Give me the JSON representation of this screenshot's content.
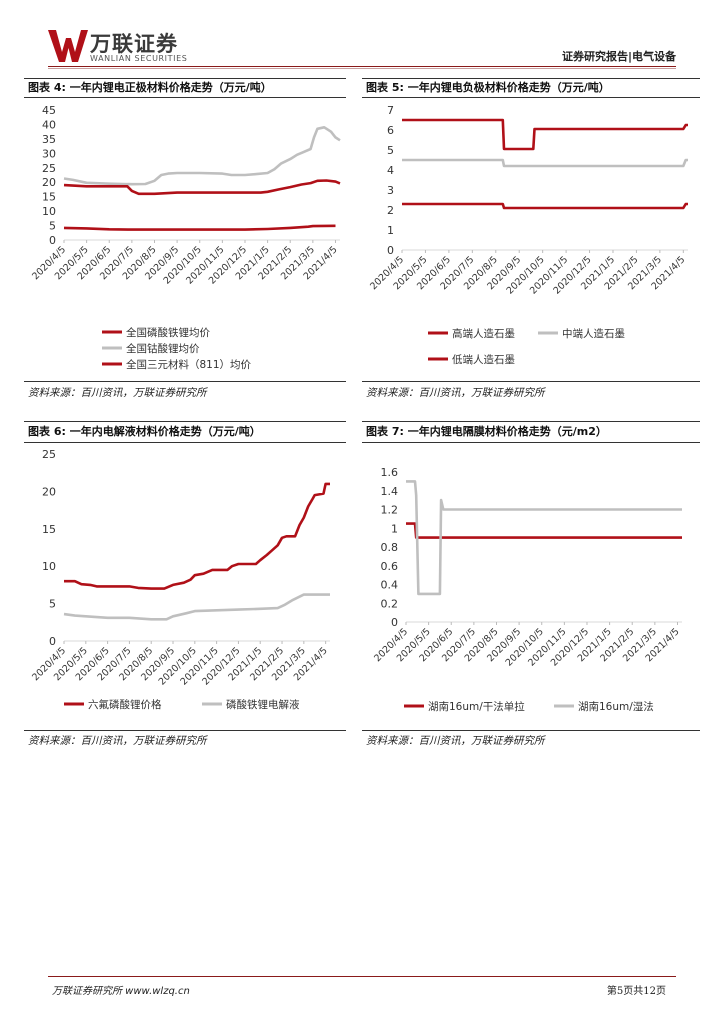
{
  "header": {
    "logo_cn": "万联证券",
    "logo_en": "WANLIAN SECURITIES",
    "report_type": "证券研究报告|电气设备"
  },
  "figures": [
    {
      "title": "图表 4:  一年内锂电正极材料价格走势（万元/吨）",
      "source": "资料来源：百川资讯，万联证券研究所"
    },
    {
      "title": "图表 5:  一年内锂电负极材料价格走势（万元/吨）",
      "source": "资料来源：百川资讯，万联证券研究所"
    },
    {
      "title": "图表 6:  一年内电解液材料价格走势（万元/吨）",
      "source": "资料来源：百川资讯，万联证券研究所"
    },
    {
      "title": "图表 7:  一年内锂电隔膜材料价格走势（元/m2）",
      "source": "资料来源：百川资讯，万联证券研究所"
    }
  ],
  "footer": {
    "left": "万联证券研究所 www.wlzq.cn",
    "right": "第5页共12页"
  },
  "colors": {
    "dark_red": "#b01018",
    "gray": "#bfbfbf",
    "rule": "#8a1a1a"
  },
  "chart_data": [
    {
      "type": "line",
      "title": "",
      "ylim": [
        0,
        45
      ],
      "yticks": [
        0,
        5,
        10,
        15,
        20,
        25,
        30,
        35,
        40,
        45
      ],
      "x_ticks": [
        "2020/4/5",
        "2020/5/5",
        "2020/6/5",
        "2020/7/5",
        "2020/8/5",
        "2020/9/5",
        "2020/10/5",
        "2020/11/5",
        "2020/12/5",
        "2021/1/5",
        "2021/2/5",
        "2021/3/5",
        "2021/4/5"
      ],
      "legend_position": "bottom",
      "series": [
        {
          "name": "全国磷酸铁锂均价",
          "color": "#b01018",
          "points": [
            [
              0,
              4.2
            ],
            [
              1,
              4.0
            ],
            [
              2,
              3.7
            ],
            [
              3,
              3.6
            ],
            [
              4,
              3.6
            ],
            [
              5,
              3.6
            ],
            [
              6,
              3.6
            ],
            [
              7,
              3.6
            ],
            [
              8,
              3.6
            ],
            [
              9,
              3.8
            ],
            [
              10,
              4.2
            ],
            [
              10.8,
              4.6
            ],
            [
              11,
              4.8
            ],
            [
              12,
              4.9
            ]
          ]
        },
        {
          "name": "全国钴酸锂均价",
          "color": "#bfbfbf",
          "points": [
            [
              0,
              21.3
            ],
            [
              0.4,
              20.8
            ],
            [
              1,
              19.8
            ],
            [
              2,
              19.5
            ],
            [
              3,
              19.3
            ],
            [
              3.6,
              19.4
            ],
            [
              4,
              20.5
            ],
            [
              4.3,
              22.5
            ],
            [
              4.6,
              23.0
            ],
            [
              5,
              23.2
            ],
            [
              6,
              23.2
            ],
            [
              7,
              23.0
            ],
            [
              7.4,
              22.5
            ],
            [
              8,
              22.5
            ],
            [
              8.5,
              22.8
            ],
            [
              9,
              23.2
            ],
            [
              9.3,
              24.5
            ],
            [
              9.6,
              26.5
            ],
            [
              10,
              28.0
            ],
            [
              10.3,
              29.5
            ],
            [
              10.6,
              30.5
            ],
            [
              10.9,
              31.5
            ],
            [
              11.05,
              35.5
            ],
            [
              11.2,
              38.5
            ],
            [
              11.5,
              39.0
            ],
            [
              11.8,
              37.5
            ],
            [
              12,
              35.5
            ],
            [
              12.2,
              34.5
            ]
          ]
        },
        {
          "name": "全国三元材料（811）均价",
          "color": "#b01018",
          "points": [
            [
              0,
              19.0
            ],
            [
              1,
              18.6
            ],
            [
              2,
              18.6
            ],
            [
              2.8,
              18.6
            ],
            [
              3,
              17.0
            ],
            [
              3.3,
              16.0
            ],
            [
              4,
              16.0
            ],
            [
              5,
              16.4
            ],
            [
              6,
              16.4
            ],
            [
              7,
              16.4
            ],
            [
              8,
              16.4
            ],
            [
              8.7,
              16.4
            ],
            [
              9,
              16.7
            ],
            [
              9.5,
              17.5
            ],
            [
              10,
              18.3
            ],
            [
              10.5,
              19.2
            ],
            [
              10.9,
              19.7
            ],
            [
              11.2,
              20.5
            ],
            [
              11.6,
              20.6
            ],
            [
              12,
              20.2
            ],
            [
              12.2,
              19.6
            ]
          ]
        }
      ]
    },
    {
      "type": "line",
      "title": "",
      "ylim": [
        0,
        7
      ],
      "yticks": [
        0,
        1,
        2,
        3,
        4,
        5,
        6,
        7
      ],
      "x_ticks": [
        "2020/4/5",
        "2020/5/5",
        "2020/6/5",
        "2020/7/5",
        "2020/8/5",
        "2020/9/5",
        "2020/10/5",
        "2020/11/5",
        "2020/12/5",
        "2021/1/5",
        "2021/2/5",
        "2021/3/5",
        "2021/4/5"
      ],
      "legend_position": "bottom",
      "series": [
        {
          "name": "高端人造石墨",
          "color": "#b01018",
          "points": [
            [
              0,
              6.5
            ],
            [
              4.3,
              6.5
            ],
            [
              4.35,
              5.05
            ],
            [
              5.6,
              5.05
            ],
            [
              5.65,
              6.05
            ],
            [
              12,
              6.05
            ],
            [
              12.1,
              6.25
            ],
            [
              12.2,
              6.25
            ]
          ]
        },
        {
          "name": "中端人造石墨",
          "color": "#bfbfbf",
          "points": [
            [
              0,
              4.5
            ],
            [
              4.3,
              4.5
            ],
            [
              4.35,
              4.2
            ],
            [
              12,
              4.2
            ],
            [
              12.1,
              4.5
            ],
            [
              12.2,
              4.5
            ]
          ]
        },
        {
          "name": "低端人造石墨",
          "color": "#b01018",
          "points": [
            [
              0,
              2.3
            ],
            [
              4.3,
              2.3
            ],
            [
              4.35,
              2.1
            ],
            [
              12,
              2.1
            ],
            [
              12.1,
              2.3
            ],
            [
              12.2,
              2.3
            ]
          ]
        }
      ]
    },
    {
      "type": "line",
      "title": "",
      "ylim": [
        0,
        25
      ],
      "yticks": [
        0,
        5,
        10,
        15,
        20,
        25
      ],
      "x_ticks": [
        "2020/4/5",
        "2020/5/5",
        "2020/6/5",
        "2020/7/5",
        "2020/8/5",
        "2020/9/5",
        "2020/10/5",
        "2020/11/5",
        "2020/12/5",
        "2021/1/5",
        "2021/2/5",
        "2021/3/5",
        "2021/4/5"
      ],
      "legend_position": "bottom",
      "series": [
        {
          "name": "六氟磷酸锂价格",
          "color": "#b01018",
          "points": [
            [
              0,
              8.0
            ],
            [
              0.5,
              8.0
            ],
            [
              0.8,
              7.6
            ],
            [
              1.2,
              7.5
            ],
            [
              1.5,
              7.3
            ],
            [
              2,
              7.3
            ],
            [
              3,
              7.3
            ],
            [
              3.4,
              7.1
            ],
            [
              4,
              7.0
            ],
            [
              4.6,
              7.0
            ],
            [
              5,
              7.5
            ],
            [
              5.5,
              7.8
            ],
            [
              5.8,
              8.2
            ],
            [
              6,
              8.8
            ],
            [
              6.4,
              9.0
            ],
            [
              6.8,
              9.5
            ],
            [
              7.5,
              9.5
            ],
            [
              7.7,
              10.0
            ],
            [
              8,
              10.3
            ],
            [
              8.8,
              10.3
            ],
            [
              9,
              10.8
            ],
            [
              9.3,
              11.5
            ],
            [
              9.5,
              12.0
            ],
            [
              9.8,
              12.8
            ],
            [
              10,
              13.8
            ],
            [
              10.2,
              14.0
            ],
            [
              10.6,
              14.0
            ],
            [
              10.8,
              15.5
            ],
            [
              11,
              16.5
            ],
            [
              11.2,
              18.0
            ],
            [
              11.4,
              19.0
            ],
            [
              11.5,
              19.5
            ],
            [
              11.9,
              19.7
            ],
            [
              12,
              21.0
            ],
            [
              12.2,
              21.0
            ]
          ]
        },
        {
          "name": "磷酸铁锂电解液",
          "color": "#bfbfbf",
          "points": [
            [
              0,
              3.6
            ],
            [
              0.5,
              3.4
            ],
            [
              1,
              3.3
            ],
            [
              1.5,
              3.2
            ],
            [
              2,
              3.1
            ],
            [
              3,
              3.1
            ],
            [
              3.5,
              3.0
            ],
            [
              4,
              2.9
            ],
            [
              4.7,
              2.9
            ],
            [
              5,
              3.3
            ],
            [
              5.3,
              3.5
            ],
            [
              5.6,
              3.7
            ],
            [
              6,
              4.0
            ],
            [
              7,
              4.1
            ],
            [
              8,
              4.2
            ],
            [
              9,
              4.3
            ],
            [
              9.8,
              4.4
            ],
            [
              10.1,
              4.8
            ],
            [
              10.5,
              5.5
            ],
            [
              11,
              6.2
            ],
            [
              12,
              6.2
            ],
            [
              12.2,
              6.2
            ]
          ]
        }
      ]
    },
    {
      "type": "line",
      "title": "",
      "ylim": [
        0,
        1.6
      ],
      "yticks": [
        0,
        0.2,
        0.4,
        0.6,
        0.8,
        1,
        1.2,
        1.4,
        1.6
      ],
      "x_ticks": [
        "2020/4/5",
        "2020/5/5",
        "2020/6/5",
        "2020/7/5",
        "2020/8/5",
        "2020/9/5",
        "2020/10/5",
        "2020/11/5",
        "2020/12/5",
        "2021/1/5",
        "2021/2/5",
        "2021/3/5",
        "2021/4/5"
      ],
      "legend_position": "bottom",
      "series": [
        {
          "name": "湖南16um/干法单拉",
          "color": "#b01018",
          "points": [
            [
              0,
              1.05
            ],
            [
              0.4,
              1.05
            ],
            [
              0.45,
              0.9
            ],
            [
              12.2,
              0.9
            ]
          ]
        },
        {
          "name": "湖南16um/湿法",
          "color": "#bfbfbf",
          "points": [
            [
              0,
              1.5
            ],
            [
              0.4,
              1.5
            ],
            [
              0.45,
              1.35
            ],
            [
              0.55,
              0.3
            ],
            [
              1.5,
              0.3
            ],
            [
              1.55,
              1.3
            ],
            [
              1.65,
              1.2
            ],
            [
              12.2,
              1.2
            ]
          ]
        }
      ]
    }
  ]
}
